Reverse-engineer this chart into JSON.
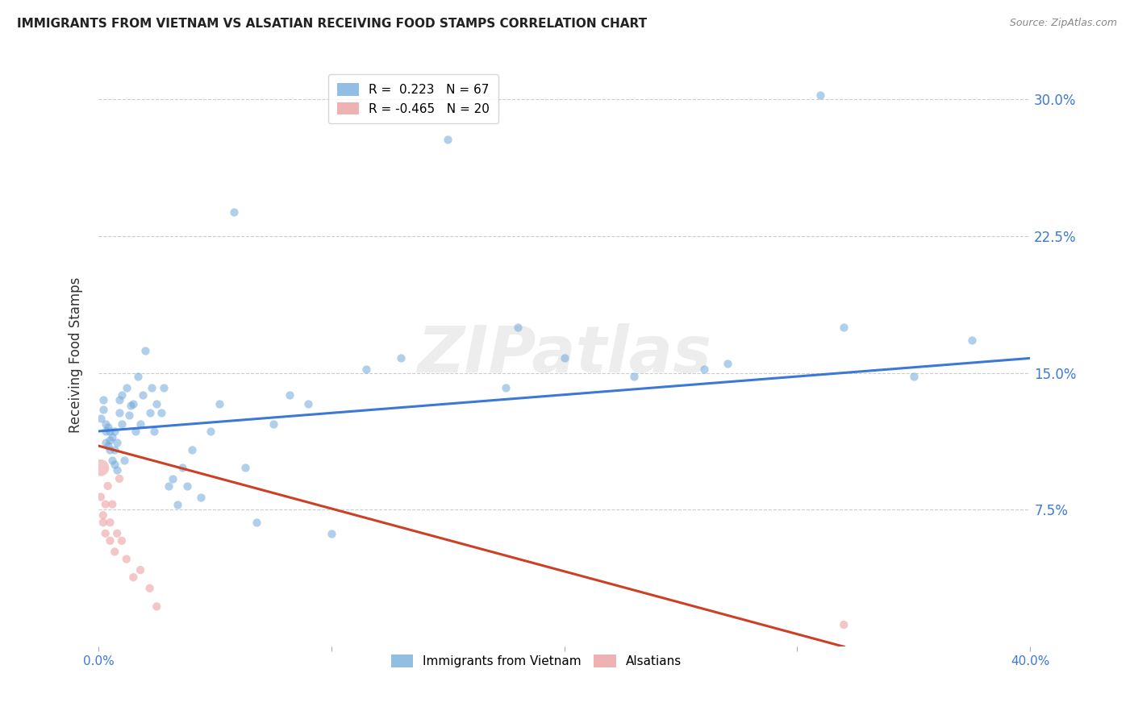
{
  "title": "IMMIGRANTS FROM VIETNAM VS ALSATIAN RECEIVING FOOD STAMPS CORRELATION CHART",
  "source": "Source: ZipAtlas.com",
  "ylabel": "Receiving Food Stamps",
  "xlim": [
    0.0,
    0.4
  ],
  "ylim": [
    0.0,
    0.32
  ],
  "watermark": "ZIPatlas",
  "blue_color": "#6fa8dc",
  "pink_color": "#ea9999",
  "blue_line_color": "#3c78d8",
  "pink_line_color": "#cc4125",
  "ytick_vals": [
    0.075,
    0.15,
    0.225,
    0.3
  ],
  "ytick_labels": [
    "7.5%",
    "15.0%",
    "22.5%",
    "30.0%"
  ],
  "xtick_vals": [
    0.0,
    0.1,
    0.2,
    0.3,
    0.4
  ],
  "xtick_labels": [
    "0.0%",
    "",
    "",
    "",
    "40.0%"
  ],
  "blue_line_x": [
    0.0,
    0.4
  ],
  "blue_line_y": [
    0.118,
    0.158
  ],
  "pink_line_x": [
    0.0,
    0.32
  ],
  "pink_line_y": [
    0.11,
    0.0
  ],
  "vietnam_x": [
    0.001,
    0.002,
    0.002,
    0.003,
    0.003,
    0.003,
    0.004,
    0.004,
    0.005,
    0.005,
    0.005,
    0.006,
    0.006,
    0.007,
    0.007,
    0.007,
    0.008,
    0.008,
    0.009,
    0.009,
    0.01,
    0.01,
    0.011,
    0.012,
    0.013,
    0.014,
    0.015,
    0.016,
    0.017,
    0.018,
    0.019,
    0.02,
    0.022,
    0.023,
    0.024,
    0.025,
    0.027,
    0.028,
    0.03,
    0.032,
    0.034,
    0.036,
    0.038,
    0.04,
    0.044,
    0.048,
    0.052,
    0.058,
    0.063,
    0.068,
    0.075,
    0.082,
    0.09,
    0.1,
    0.115,
    0.13,
    0.15,
    0.175,
    0.2,
    0.23,
    0.26,
    0.31,
    0.35,
    0.375,
    0.32,
    0.27,
    0.18
  ],
  "vietnam_y": [
    0.125,
    0.13,
    0.135,
    0.112,
    0.118,
    0.122,
    0.11,
    0.12,
    0.108,
    0.113,
    0.118,
    0.102,
    0.115,
    0.1,
    0.108,
    0.118,
    0.097,
    0.112,
    0.128,
    0.135,
    0.122,
    0.138,
    0.102,
    0.142,
    0.127,
    0.132,
    0.133,
    0.118,
    0.148,
    0.122,
    0.138,
    0.162,
    0.128,
    0.142,
    0.118,
    0.133,
    0.128,
    0.142,
    0.088,
    0.092,
    0.078,
    0.098,
    0.088,
    0.108,
    0.082,
    0.118,
    0.133,
    0.238,
    0.098,
    0.068,
    0.122,
    0.138,
    0.133,
    0.062,
    0.152,
    0.158,
    0.278,
    0.142,
    0.158,
    0.148,
    0.152,
    0.302,
    0.148,
    0.168,
    0.175,
    0.155,
    0.175
  ],
  "alsatian_x": [
    0.001,
    0.001,
    0.002,
    0.002,
    0.003,
    0.003,
    0.004,
    0.005,
    0.005,
    0.006,
    0.007,
    0.008,
    0.009,
    0.01,
    0.012,
    0.015,
    0.018,
    0.022,
    0.025,
    0.32
  ],
  "alsatian_y": [
    0.098,
    0.082,
    0.072,
    0.068,
    0.078,
    0.062,
    0.088,
    0.068,
    0.058,
    0.078,
    0.052,
    0.062,
    0.092,
    0.058,
    0.048,
    0.038,
    0.042,
    0.032,
    0.022,
    0.012
  ],
  "alsatian_large_idx": [
    0
  ],
  "vietnam_dot_size": 55,
  "alsatian_dot_size": 55,
  "alsatian_large_size": 220
}
